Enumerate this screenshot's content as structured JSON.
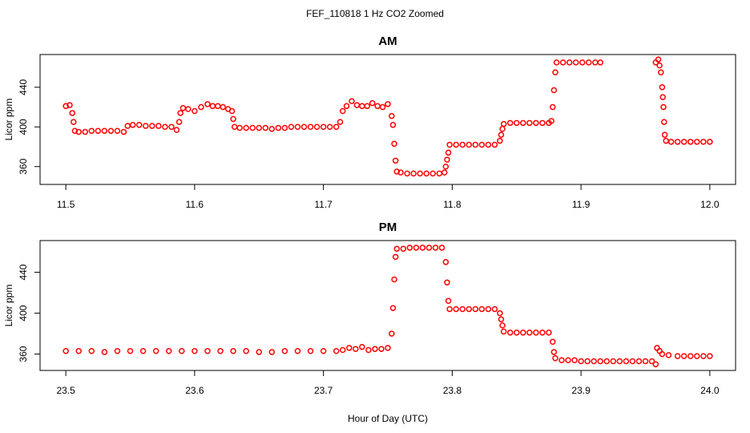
{
  "title": "FEF_110818  1 Hz CO2 Zoomed",
  "chart_data": [
    {
      "type": "scatter",
      "title": "AM",
      "ylabel": "Licor ppm",
      "color": "#ff0000",
      "xlim": [
        11.48,
        12.02
      ],
      "ylim": [
        342,
        473
      ],
      "xticks": [
        11.5,
        11.6,
        11.7,
        11.8,
        11.9,
        {
          "value": 12,
          "label": "12.0"
        }
      ],
      "yticks": [
        360,
        400,
        440
      ],
      "x": [
        11.5,
        11.503,
        11.505,
        11.506,
        11.507,
        11.51,
        11.515,
        11.52,
        11.525,
        11.53,
        11.535,
        11.54,
        11.545,
        11.548,
        11.552,
        11.557,
        11.562,
        11.567,
        11.572,
        11.577,
        11.582,
        11.586,
        11.588,
        11.589,
        11.591,
        11.595,
        11.6,
        11.605,
        11.61,
        11.614,
        11.618,
        11.622,
        11.626,
        11.629,
        11.63,
        11.631,
        11.635,
        11.64,
        11.645,
        11.65,
        11.655,
        11.66,
        11.665,
        11.67,
        11.675,
        11.68,
        11.685,
        11.69,
        11.695,
        11.7,
        11.705,
        11.71,
        11.713,
        11.715,
        11.718,
        11.722,
        11.726,
        11.73,
        11.734,
        11.738,
        11.742,
        11.746,
        11.75,
        11.753,
        11.754,
        11.755,
        11.756,
        11.757,
        11.76,
        11.765,
        11.77,
        11.775,
        11.78,
        11.785,
        11.79,
        11.794,
        11.795,
        11.796,
        11.797,
        11.798,
        11.803,
        11.808,
        11.813,
        11.818,
        11.823,
        11.828,
        11.833,
        11.837,
        11.838,
        11.839,
        11.84,
        11.845,
        11.85,
        11.855,
        11.86,
        11.865,
        11.87,
        11.875,
        11.877,
        11.878,
        11.879,
        11.88,
        11.881,
        11.886,
        11.891,
        11.896,
        11.901,
        11.906,
        11.911,
        11.915,
        11.958,
        11.96,
        11.961,
        11.962,
        11.963,
        11.9635,
        11.964,
        11.9645,
        11.965,
        11.966,
        11.97,
        11.975,
        11.98,
        11.985,
        11.99,
        11.995,
        12.0
      ],
      "values": [
        421,
        422,
        414,
        405,
        396,
        395,
        395,
        396,
        396,
        396,
        396,
        396,
        395,
        401,
        402,
        402,
        401,
        401,
        401,
        400,
        400,
        397,
        405,
        414,
        419,
        418,
        416,
        420,
        423,
        421,
        421,
        420,
        418,
        416,
        408,
        400,
        399,
        399,
        399,
        399,
        399,
        398,
        399,
        399,
        400,
        400,
        400,
        400,
        400,
        400,
        400,
        400,
        405,
        416,
        421,
        426,
        422,
        421,
        421,
        424,
        421,
        420,
        423,
        411,
        402,
        383,
        366,
        355,
        354,
        353,
        353,
        353,
        353,
        353,
        353,
        354,
        360,
        367,
        374,
        382,
        382,
        382,
        382,
        382,
        382,
        382,
        382,
        386,
        392,
        398,
        403,
        404,
        404,
        404,
        404,
        404,
        404,
        404,
        406,
        420,
        437,
        455,
        465,
        465,
        465,
        465,
        465,
        465,
        465,
        465,
        465,
        468,
        462,
        455,
        440,
        430,
        420,
        405,
        392,
        386,
        385,
        385,
        385,
        385,
        385,
        385,
        385
      ]
    },
    {
      "type": "scatter",
      "title": "PM",
      "ylabel": "Licor ppm",
      "xlabel": "Hour of Day (UTC)",
      "color": "#ff0000",
      "xlim": [
        23.48,
        24.02
      ],
      "ylim": [
        344,
        471
      ],
      "xticks": [
        23.5,
        23.6,
        23.7,
        23.8,
        23.9,
        {
          "value": 24,
          "label": "24.0"
        }
      ],
      "yticks": [
        360,
        400,
        440
      ],
      "x": [
        23.5,
        23.51,
        23.52,
        23.53,
        23.54,
        23.55,
        23.56,
        23.57,
        23.58,
        23.59,
        23.6,
        23.61,
        23.62,
        23.63,
        23.64,
        23.65,
        23.66,
        23.67,
        23.68,
        23.69,
        23.7,
        23.71,
        23.715,
        23.72,
        23.725,
        23.73,
        23.735,
        23.74,
        23.745,
        23.75,
        23.753,
        23.754,
        23.755,
        23.756,
        23.757,
        23.762,
        23.767,
        23.772,
        23.777,
        23.782,
        23.787,
        23.792,
        23.795,
        23.796,
        23.797,
        23.798,
        23.803,
        23.808,
        23.813,
        23.818,
        23.823,
        23.828,
        23.833,
        23.837,
        23.838,
        23.839,
        23.84,
        23.845,
        23.85,
        23.855,
        23.86,
        23.865,
        23.87,
        23.875,
        23.878,
        23.879,
        23.88,
        23.885,
        23.89,
        23.895,
        23.9,
        23.905,
        23.91,
        23.915,
        23.92,
        23.925,
        23.93,
        23.935,
        23.94,
        23.945,
        23.95,
        23.955,
        23.958,
        23.959,
        23.961,
        23.963,
        23.968,
        23.975,
        23.98,
        23.985,
        23.99,
        23.995,
        24.0
      ],
      "values": [
        363,
        363,
        363,
        362,
        363,
        363,
        363,
        363,
        363,
        363,
        363,
        363,
        363,
        363,
        363,
        362,
        362,
        363,
        363,
        363,
        363,
        363,
        364,
        366,
        365,
        367,
        364,
        365,
        365,
        366,
        380,
        405,
        433,
        455,
        463,
        463,
        464,
        464,
        464,
        464,
        464,
        464,
        450,
        430,
        412,
        404,
        404,
        404,
        404,
        404,
        404,
        404,
        404,
        400,
        394,
        388,
        382,
        381,
        381,
        381,
        381,
        381,
        381,
        381,
        372,
        362,
        356,
        354,
        354,
        354,
        353,
        353,
        353,
        353,
        353,
        353,
        353,
        353,
        353,
        353,
        353,
        353,
        350,
        366,
        363,
        360,
        359,
        358,
        358,
        358,
        358,
        358,
        358
      ]
    }
  ]
}
